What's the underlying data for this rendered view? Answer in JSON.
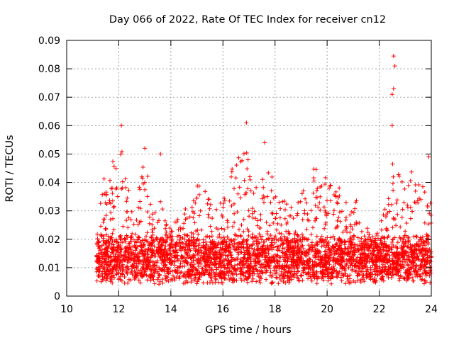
{
  "chart_data": {
    "type": "scatter",
    "title": "Day 066 of 2022, Rate Of TEC Index for receiver cn12",
    "xlabel": "GPS time / hours",
    "ylabel": "ROTI / TECUs",
    "xlim": [
      10,
      24
    ],
    "ylim": [
      0,
      0.09
    ],
    "grid": true,
    "marker": "+",
    "color": "#ff0000",
    "xticks": [
      10,
      12,
      14,
      16,
      18,
      20,
      22,
      24
    ],
    "xtick_labels": [
      "10",
      "12",
      "14",
      "16",
      "18",
      "20",
      "22",
      "24"
    ],
    "yticks": [
      0,
      0.01,
      0.02,
      0.03,
      0.04,
      0.05,
      0.06,
      0.07,
      0.08,
      0.09
    ],
    "ytick_labels": [
      "0",
      "0.01",
      "0.02",
      "0.03",
      "0.04",
      "0.05",
      "0.06",
      "0.07",
      "0.08",
      "0.09"
    ],
    "notable_peaks": [
      {
        "x": 12.1,
        "y": 0.06
      },
      {
        "x": 13.0,
        "y": 0.052
      },
      {
        "x": 13.6,
        "y": 0.05
      },
      {
        "x": 16.9,
        "y": 0.061
      },
      {
        "x": 17.6,
        "y": 0.054
      },
      {
        "x": 22.55,
        "y": 0.0845
      },
      {
        "x": 22.6,
        "y": 0.081
      },
      {
        "x": 22.55,
        "y": 0.073
      },
      {
        "x": 22.5,
        "y": 0.071
      },
      {
        "x": 22.5,
        "y": 0.06
      },
      {
        "x": 23.9,
        "y": 0.049
      }
    ],
    "envelope": [
      {
        "x": 11.2,
        "y": 0.02
      },
      {
        "x": 11.3,
        "y": 0.04
      },
      {
        "x": 11.7,
        "y": 0.048
      },
      {
        "x": 12.0,
        "y": 0.047
      },
      {
        "x": 12.1,
        "y": 0.056
      },
      {
        "x": 12.3,
        "y": 0.04
      },
      {
        "x": 12.6,
        "y": 0.03
      },
      {
        "x": 13.0,
        "y": 0.05
      },
      {
        "x": 13.3,
        "y": 0.03
      },
      {
        "x": 13.6,
        "y": 0.04
      },
      {
        "x": 14.0,
        "y": 0.025
      },
      {
        "x": 14.5,
        "y": 0.03
      },
      {
        "x": 15.0,
        "y": 0.044
      },
      {
        "x": 15.3,
        "y": 0.038
      },
      {
        "x": 15.7,
        "y": 0.03
      },
      {
        "x": 16.0,
        "y": 0.036
      },
      {
        "x": 16.4,
        "y": 0.046
      },
      {
        "x": 16.9,
        "y": 0.055
      },
      {
        "x": 17.2,
        "y": 0.04
      },
      {
        "x": 17.6,
        "y": 0.05
      },
      {
        "x": 18.0,
        "y": 0.044
      },
      {
        "x": 18.4,
        "y": 0.038
      },
      {
        "x": 18.8,
        "y": 0.033
      },
      {
        "x": 19.2,
        "y": 0.04
      },
      {
        "x": 19.5,
        "y": 0.047
      },
      {
        "x": 19.9,
        "y": 0.042
      },
      {
        "x": 20.3,
        "y": 0.043
      },
      {
        "x": 20.7,
        "y": 0.033
      },
      {
        "x": 21.0,
        "y": 0.039
      },
      {
        "x": 21.4,
        "y": 0.025
      },
      {
        "x": 21.9,
        "y": 0.022
      },
      {
        "x": 22.2,
        "y": 0.03
      },
      {
        "x": 22.5,
        "y": 0.048
      },
      {
        "x": 22.8,
        "y": 0.043
      },
      {
        "x": 23.2,
        "y": 0.048
      },
      {
        "x": 23.5,
        "y": 0.04
      },
      {
        "x": 23.9,
        "y": 0.045
      },
      {
        "x": 24.0,
        "y": 0.03
      }
    ],
    "data_start_hour": 11.15,
    "data_end_hour": 24.0,
    "baseline_range": [
      0.006,
      0.02
    ]
  }
}
